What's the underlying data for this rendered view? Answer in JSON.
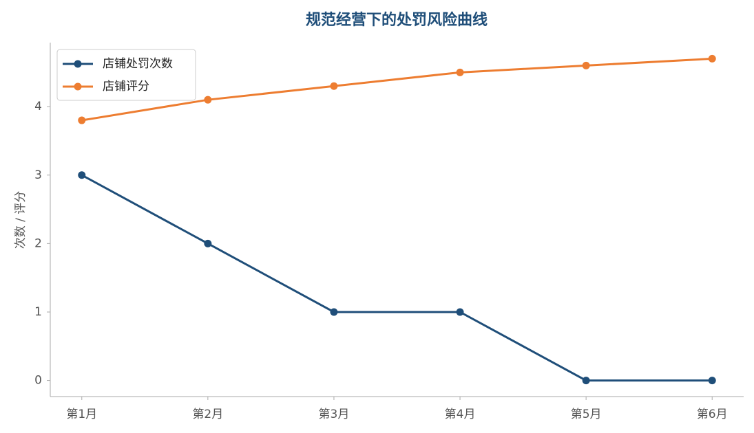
{
  "chart_data": {
    "type": "line",
    "title": "规范经营下的处罚风险曲线",
    "y_label": "次数 / 评分",
    "categories": [
      "第1月",
      "第2月",
      "第3月",
      "第4月",
      "第5月",
      "第6月"
    ],
    "series": [
      {
        "name": "店铺处罚次数",
        "color": "#1f4e79",
        "values": [
          3,
          2,
          1,
          1,
          0,
          0
        ]
      },
      {
        "name": "店铺评分",
        "color": "#ed7d31",
        "values": [
          3.8,
          4.1,
          4.3,
          4.5,
          4.6,
          4.7
        ]
      }
    ],
    "ylim": [
      -0.235,
      4.935
    ],
    "yticks": [
      0,
      1,
      2,
      3,
      4
    ],
    "grid": false,
    "legend": "upper left"
  }
}
